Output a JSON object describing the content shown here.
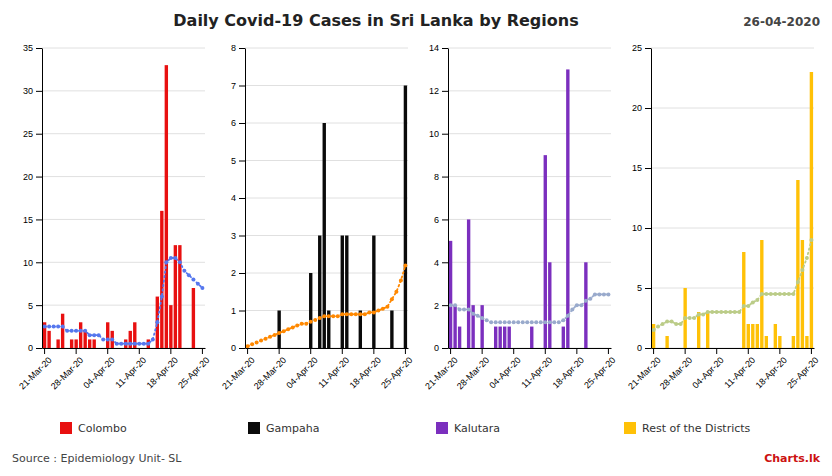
{
  "chart_data": [
    {
      "type": "bar",
      "title": "Daily Covid-19 Cases in Sri Lanka by Regions",
      "subtitle": "26-04-2020",
      "annotations": [
        "Source : Epidemiology Unit- SL",
        "Charts.lk"
      ],
      "categories": [
        "21-Mar-20",
        null,
        null,
        null,
        null,
        null,
        null,
        "28-Mar-20",
        null,
        null,
        null,
        null,
        null,
        null,
        "04-Apr-20",
        null,
        null,
        null,
        null,
        null,
        null,
        "11-Apr-20",
        null,
        null,
        null,
        null,
        null,
        null,
        "18-Apr-20",
        null,
        null,
        null,
        null,
        null,
        null,
        "25-Apr-20"
      ],
      "series": [
        {
          "name": "Colombo",
          "type": "bar",
          "color": "#e81010",
          "values": [
            3,
            2,
            0,
            1,
            4,
            0,
            1,
            1,
            3,
            2,
            1,
            1,
            0,
            0,
            3,
            2,
            0,
            0,
            1,
            2,
            3,
            0,
            0,
            1,
            0,
            6,
            16,
            33,
            5,
            12,
            12,
            0,
            0,
            7,
            0,
            0
          ]
        },
        {
          "type": "line",
          "color": "#5577ee",
          "line_style": "dotted",
          "marker": "circle",
          "values": [
            2.5,
            2.5,
            2.5,
            2.5,
            2.5,
            2.0,
            2.0,
            2.0,
            2.0,
            2.0,
            1.5,
            1.5,
            1.5,
            1.0,
            1.0,
            1.0,
            0.5,
            0.5,
            0.5,
            0.5,
            0.5,
            0.5,
            0.5,
            0.5,
            1.0,
            3.0,
            6.0,
            10.0,
            10.5,
            10.5,
            10.0,
            9.0,
            8.5,
            8.0,
            7.5,
            7.0
          ]
        }
      ],
      "ylim": [
        0,
        35
      ],
      "yticks": [
        0,
        5,
        10,
        15,
        20,
        25,
        30,
        35
      ],
      "grid": true,
      "legend": "bottom"
    },
    {
      "type": "bar",
      "categories": [
        "21-Mar-20",
        null,
        null,
        null,
        null,
        null,
        null,
        "28-Mar-20",
        null,
        null,
        null,
        null,
        null,
        null,
        "04-Apr-20",
        null,
        null,
        null,
        null,
        null,
        null,
        "11-Apr-20",
        null,
        null,
        null,
        null,
        null,
        null,
        "18-Apr-20",
        null,
        null,
        null,
        null,
        null,
        null,
        "25-Apr-20"
      ],
      "series": [
        {
          "name": "Gampaha",
          "type": "bar",
          "color": "#0a0a0a",
          "values": [
            0,
            0,
            0,
            0,
            0,
            0,
            0,
            1,
            0,
            0,
            0,
            0,
            0,
            0,
            2,
            0,
            3,
            6,
            1,
            0,
            0,
            3,
            3,
            0,
            0,
            1,
            0,
            0,
            3,
            0,
            0,
            0,
            1,
            0,
            0,
            7
          ]
        },
        {
          "type": "line",
          "color": "#ff8800",
          "line_style": "dotted",
          "marker": "circle",
          "values": [
            0.05,
            0.1,
            0.15,
            0.2,
            0.25,
            0.3,
            0.35,
            0.4,
            0.45,
            0.5,
            0.55,
            0.6,
            0.65,
            0.65,
            0.7,
            0.75,
            0.8,
            0.85,
            0.85,
            0.85,
            0.85,
            0.9,
            0.9,
            0.9,
            0.9,
            0.9,
            0.9,
            0.95,
            0.95,
            1.0,
            1.05,
            1.1,
            1.3,
            1.5,
            1.8,
            2.2
          ]
        }
      ],
      "ylim": [
        0,
        8
      ],
      "yticks": [
        0,
        1,
        2,
        3,
        4,
        5,
        6,
        7,
        8
      ],
      "grid": true,
      "legend": "bottom"
    },
    {
      "type": "bar",
      "categories": [
        "21-Mar-20",
        null,
        null,
        null,
        null,
        null,
        null,
        "28-Mar-20",
        null,
        null,
        null,
        null,
        null,
        null,
        "04-Apr-20",
        null,
        null,
        null,
        null,
        null,
        null,
        "11-Apr-20",
        null,
        null,
        null,
        null,
        null,
        null,
        "18-Apr-20",
        null,
        null,
        null,
        null,
        null,
        null,
        "25-Apr-20"
      ],
      "series": [
        {
          "name": "Kalutara",
          "type": "bar",
          "color": "#7b2fbe",
          "values": [
            5,
            2,
            1,
            0,
            6,
            2,
            0,
            2,
            0,
            0,
            1,
            1,
            1,
            1,
            0,
            0,
            0,
            0,
            1,
            0,
            0,
            9,
            4,
            0,
            0,
            1,
            13,
            0,
            0,
            0,
            4,
            0,
            0,
            0,
            0,
            0
          ]
        },
        {
          "type": "line",
          "color": "#99aacc",
          "line_style": "dotted",
          "marker": "circle",
          "values": [
            2.0,
            2.0,
            1.8,
            1.8,
            1.8,
            1.6,
            1.5,
            1.4,
            1.3,
            1.2,
            1.2,
            1.2,
            1.2,
            1.2,
            1.2,
            1.2,
            1.2,
            1.2,
            1.2,
            1.2,
            1.2,
            1.2,
            1.2,
            1.2,
            1.2,
            1.3,
            1.5,
            1.8,
            2.0,
            2.0,
            2.2,
            2.3,
            2.5,
            2.5,
            2.5,
            2.5
          ]
        }
      ],
      "ylim": [
        0,
        14
      ],
      "yticks": [
        0,
        2,
        4,
        6,
        8,
        10,
        12,
        14
      ],
      "grid": true,
      "legend": "bottom"
    },
    {
      "type": "bar",
      "categories": [
        "21-Mar-20",
        null,
        null,
        null,
        null,
        null,
        null,
        "28-Mar-20",
        null,
        null,
        null,
        null,
        null,
        null,
        "04-Apr-20",
        null,
        null,
        null,
        null,
        null,
        null,
        "11-Apr-20",
        null,
        null,
        null,
        null,
        null,
        null,
        "18-Apr-20",
        null,
        null,
        null,
        null,
        null,
        null,
        "25-Apr-20"
      ],
      "series": [
        {
          "name": "Rest of the Districts",
          "type": "bar",
          "color": "#ffc107",
          "values": [
            2,
            0,
            0,
            1,
            0,
            0,
            0,
            5,
            0,
            0,
            3,
            0,
            3,
            0,
            0,
            0,
            0,
            0,
            0,
            0,
            8,
            2,
            2,
            2,
            9,
            1,
            0,
            2,
            1,
            0,
            0,
            1,
            14,
            9,
            1,
            23
          ]
        },
        {
          "type": "line",
          "color": "#bbcc88",
          "line_style": "dotted",
          "marker": "circle",
          "values": [
            1.5,
            1.8,
            2.0,
            2.2,
            2.2,
            2.0,
            2.0,
            2.5,
            2.5,
            2.5,
            2.8,
            2.8,
            3.0,
            3.0,
            3.0,
            3.0,
            3.0,
            3.0,
            3.0,
            3.0,
            3.5,
            3.5,
            3.8,
            4.0,
            4.5,
            4.5,
            4.5,
            4.5,
            4.5,
            4.5,
            4.5,
            4.5,
            5.5,
            6.5,
            7.5,
            9.0
          ]
        }
      ],
      "ylim": [
        0,
        25
      ],
      "yticks": [
        0,
        5,
        10,
        15,
        20,
        25
      ],
      "grid": true,
      "legend": "bottom"
    }
  ]
}
